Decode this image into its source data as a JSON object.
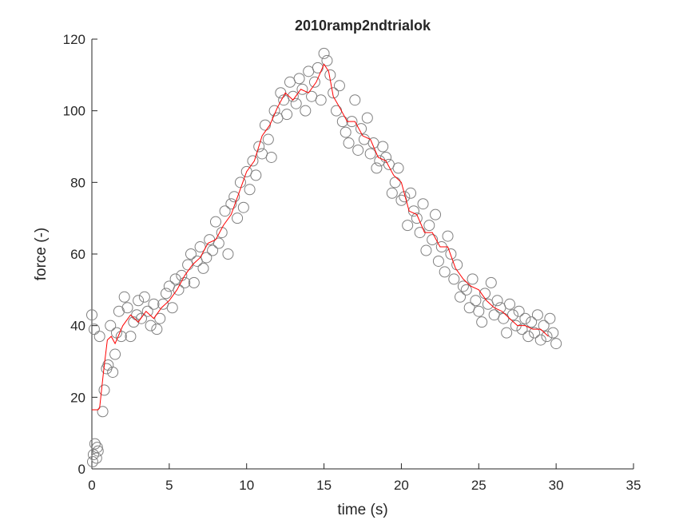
{
  "chart_data": {
    "type": "scatter",
    "title": "2010ramp2ndtrialok",
    "xlabel": "time (s)",
    "ylabel": "force (-)",
    "xlim": [
      0,
      35
    ],
    "ylim": [
      0,
      120
    ],
    "xticks": [
      0,
      5,
      10,
      15,
      20,
      25,
      30,
      35
    ],
    "yticks": [
      0,
      20,
      40,
      60,
      80,
      100,
      120
    ],
    "series": [
      {
        "type": "scatter",
        "color": "#808080",
        "x": [
          0,
          0.05,
          0.1,
          0.15,
          0.2,
          0.3,
          0.35,
          0.4,
          0.5,
          0.7,
          0.8,
          0.95,
          1.05,
          1.2,
          1.35,
          1.5,
          1.6,
          1.75,
          1.9,
          2.1,
          2.3,
          2.5,
          2.7,
          2.9,
          3.0,
          3.2,
          3.4,
          3.6,
          3.8,
          4.0,
          4.2,
          4.4,
          4.6,
          4.8,
          5.0,
          5.2,
          5.4,
          5.6,
          5.8,
          6.0,
          6.2,
          6.4,
          6.6,
          6.8,
          7.0,
          7.2,
          7.4,
          7.6,
          7.8,
          8.0,
          8.2,
          8.4,
          8.6,
          8.8,
          9.0,
          9.2,
          9.4,
          9.6,
          9.8,
          10.0,
          10.2,
          10.4,
          10.6,
          10.8,
          11.0,
          11.2,
          11.4,
          11.6,
          11.8,
          12.0,
          12.2,
          12.4,
          12.6,
          12.8,
          13.0,
          13.2,
          13.4,
          13.6,
          13.8,
          14.0,
          14.2,
          14.4,
          14.6,
          14.8,
          15.0,
          15.2,
          15.4,
          15.6,
          15.8,
          16.0,
          16.2,
          16.4,
          16.6,
          16.8,
          17.0,
          17.2,
          17.4,
          17.6,
          17.8,
          18.0,
          18.2,
          18.4,
          18.6,
          18.8,
          19.0,
          19.2,
          19.4,
          19.6,
          19.8,
          20.0,
          20.2,
          20.4,
          20.6,
          20.8,
          21.0,
          21.2,
          21.4,
          21.6,
          21.8,
          22.0,
          22.2,
          22.4,
          22.6,
          22.8,
          23.0,
          23.2,
          23.4,
          23.6,
          23.8,
          24.0,
          24.2,
          24.4,
          24.6,
          24.8,
          25.0,
          25.2,
          25.4,
          25.6,
          25.8,
          26.0,
          26.2,
          26.4,
          26.6,
          26.8,
          27.0,
          27.2,
          27.4,
          27.6,
          27.8,
          28.0,
          28.2,
          28.4,
          28.6,
          28.8,
          29.0,
          29.2,
          29.4,
          29.6,
          29.8,
          30.0
        ],
        "values": [
          43,
          2,
          4,
          39,
          7,
          3,
          6,
          5,
          37,
          16,
          22,
          28,
          29,
          40,
          27,
          32,
          38,
          44,
          37,
          48,
          45,
          37,
          41,
          43,
          47,
          42,
          48,
          44,
          40,
          46,
          39,
          42,
          46,
          49,
          51,
          45,
          53,
          50,
          54,
          52,
          57,
          60,
          52,
          58,
          62,
          56,
          59,
          64,
          61,
          69,
          63,
          66,
          72,
          60,
          74,
          76,
          70,
          80,
          73,
          83,
          78,
          86,
          82,
          90,
          88,
          96,
          92,
          87,
          100,
          98,
          105,
          103,
          99,
          108,
          104,
          102,
          109,
          106,
          100,
          111,
          104,
          108,
          112,
          103,
          116,
          114,
          110,
          105,
          100,
          107,
          97,
          94,
          91,
          97,
          103,
          89,
          95,
          92,
          98,
          88,
          91,
          84,
          86,
          90,
          87,
          85,
          77,
          80,
          84,
          75,
          76,
          68,
          77,
          72,
          70,
          66,
          74,
          61,
          68,
          64,
          71,
          58,
          62,
          55,
          65,
          60,
          53,
          57,
          48,
          51,
          50,
          45,
          53,
          47,
          44,
          41,
          49,
          46,
          52,
          43,
          47,
          45,
          42,
          38,
          46,
          43,
          40,
          44,
          39,
          42,
          37,
          41,
          38,
          43,
          36,
          40,
          37,
          42,
          38,
          35
        ]
      },
      {
        "type": "line",
        "color": "#ff0000",
        "x": [
          0,
          0.4,
          0.5,
          0.75,
          1,
          1.25,
          1.5,
          2,
          2.5,
          3,
          3.5,
          4,
          4.5,
          5,
          5.5,
          6,
          6.5,
          7,
          7.5,
          8,
          8.5,
          9,
          9.5,
          10,
          10.5,
          11,
          11.5,
          12,
          12.5,
          13,
          13.5,
          14,
          14.5,
          15,
          15.3,
          15.6,
          16,
          16.5,
          17,
          17.5,
          18,
          18.5,
          19,
          19.5,
          20,
          20.5,
          21,
          21.5,
          22,
          22.5,
          23,
          23.5,
          24,
          24.5,
          25,
          25.5,
          26,
          26.5,
          27,
          27.5,
          28,
          28.5,
          29,
          29.5
        ],
        "values": [
          16.5,
          16.5,
          17,
          27,
          36,
          37,
          35,
          40,
          43,
          41,
          44,
          42,
          45,
          47,
          50,
          54,
          57,
          59,
          63,
          64,
          68,
          71,
          77,
          83,
          86,
          93,
          96,
          101,
          105,
          103,
          106,
          105,
          108,
          113,
          111,
          104,
          101,
          97,
          97,
          93,
          92,
          87,
          86,
          82,
          80,
          72,
          71,
          66,
          66,
          62,
          62,
          56,
          53,
          51,
          50,
          47,
          45,
          44,
          42,
          40,
          40,
          39,
          39,
          37
        ]
      }
    ]
  }
}
